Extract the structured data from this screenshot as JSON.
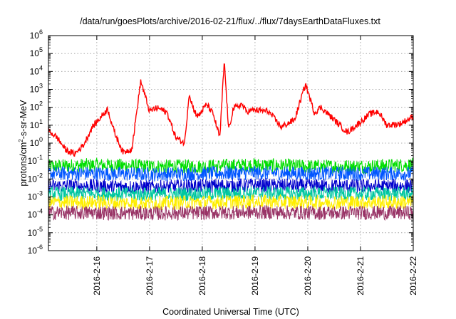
{
  "chart_data": {
    "type": "line",
    "title": "/data/run/goesPlots/archive/2016-02-21/flux/../flux/7daysEarthDataFluxes.txt",
    "xlabel": "Coordinated Universal Time (UTC)",
    "ylabel_parts": {
      "base": "protons/cm",
      "sup": "2",
      "rest": "-s-sr-MeV"
    },
    "ylabel": "protons/cm2-s-sr-MeV",
    "y_scale": "log",
    "ylim": [
      1e-06,
      1000000.0
    ],
    "xlim": [
      "2016-02-15 02:00",
      "2016-02-22 00:00"
    ],
    "grid": true,
    "legend": "none",
    "x_ticks": [
      "2016-2-16",
      "2016-2-17",
      "2016-2-18",
      "2016-2-19",
      "2016-2-20",
      "2016-2-21",
      "2016-2-22"
    ],
    "x_tick_dates": [
      "2016-02-16",
      "2016-02-17",
      "2016-02-18",
      "2016-02-19",
      "2016-02-20",
      "2016-02-21",
      "2016-02-22"
    ],
    "y_ticks": [
      {
        "base": "10",
        "exp": "-6",
        "value": 1e-06
      },
      {
        "base": "10",
        "exp": "-5",
        "value": 1e-05
      },
      {
        "base": "10",
        "exp": "-4",
        "value": 0.0001
      },
      {
        "base": "10",
        "exp": "-3",
        "value": 0.001
      },
      {
        "base": "10",
        "exp": "-2",
        "value": 0.01
      },
      {
        "base": "10",
        "exp": "-1",
        "value": 0.1
      },
      {
        "base": "10",
        "exp": "0",
        "value": 1
      },
      {
        "base": "10",
        "exp": "1",
        "value": 10
      },
      {
        "base": "10",
        "exp": "2",
        "value": 100
      },
      {
        "base": "10",
        "exp": "3",
        "value": 1000
      },
      {
        "base": "10",
        "exp": "4",
        "value": 10000
      },
      {
        "base": "10",
        "exp": "5",
        "value": 100000
      },
      {
        "base": "10",
        "exp": "6",
        "value": 1000000
      }
    ],
    "series": [
      {
        "color": "#ff0000",
        "x": [
          "2016-02-15 02:00",
          "2016-02-15 06:00",
          "2016-02-15 10:00",
          "2016-02-15 14:00",
          "2016-02-15 18:00",
          "2016-02-15 22:00",
          "2016-02-16 00:00",
          "2016-02-16 02:00",
          "2016-02-16 05:00",
          "2016-02-16 08:00",
          "2016-02-16 12:00",
          "2016-02-16 16:00",
          "2016-02-16 20:00",
          "2016-02-17 00:00",
          "2016-02-17 02:00",
          "2016-02-17 04:00",
          "2016-02-17 08:00",
          "2016-02-17 12:00",
          "2016-02-17 16:00",
          "2016-02-17 18:00",
          "2016-02-17 20:00",
          "2016-02-17 22:00",
          "2016-02-18 02:00",
          "2016-02-18 05:00",
          "2016-02-18 08:00",
          "2016-02-18 10:00",
          "2016-02-18 12:00",
          "2016-02-18 14:00",
          "2016-02-18 18:00",
          "2016-02-18 20:00",
          "2016-02-19 00:00",
          "2016-02-19 06:00",
          "2016-02-19 12:00",
          "2016-02-19 18:00",
          "2016-02-19 23:00",
          "2016-02-20 03:00",
          "2016-02-20 06:00",
          "2016-02-20 12:00",
          "2016-02-20 18:00",
          "2016-02-21 00:00",
          "2016-02-21 04:00",
          "2016-02-21 08:00",
          "2016-02-21 12:00",
          "2016-02-21 18:00",
          "2016-02-22 00:00"
        ],
        "values": [
          5,
          2,
          0.4,
          0.25,
          0.8,
          8,
          15,
          30,
          80,
          4,
          0.3,
          0.5,
          3000,
          60,
          80,
          90,
          50,
          2,
          1,
          600,
          80,
          30,
          150,
          40,
          2,
          40000,
          5,
          80,
          150,
          60,
          70,
          60,
          8,
          20,
          2000,
          50,
          100,
          20,
          4,
          15,
          40,
          60,
          10,
          12,
          30
        ]
      },
      {
        "color": "#00dd00",
        "x": [
          "2016-02-15 02:00",
          "2016-02-16 00:00",
          "2016-02-17 00:00",
          "2016-02-18 00:00",
          "2016-02-19 00:00",
          "2016-02-20 00:00",
          "2016-02-21 00:00",
          "2016-02-22 00:00"
        ],
        "values": [
          0.05,
          0.06,
          0.05,
          0.05,
          0.06,
          0.05,
          0.05,
          0.06
        ]
      },
      {
        "color": "#0055ff",
        "x": [
          "2016-02-15 02:00",
          "2016-02-16 00:00",
          "2016-02-17 00:00",
          "2016-02-18 00:00",
          "2016-02-19 00:00",
          "2016-02-20 00:00",
          "2016-02-21 00:00",
          "2016-02-22 00:00"
        ],
        "values": [
          0.02,
          0.02,
          0.018,
          0.02,
          0.022,
          0.02,
          0.02,
          0.02
        ]
      },
      {
        "color": "#0000cc",
        "x": [
          "2016-02-15 02:00",
          "2016-02-16 00:00",
          "2016-02-17 00:00",
          "2016-02-18 00:00",
          "2016-02-19 00:00",
          "2016-02-20 00:00",
          "2016-02-21 00:00",
          "2016-02-22 00:00"
        ],
        "values": [
          0.004,
          0.004,
          0.0035,
          0.004,
          0.0045,
          0.004,
          0.004,
          0.004
        ]
      },
      {
        "color": "#00c8a0",
        "x": [
          "2016-02-15 02:00",
          "2016-02-16 00:00",
          "2016-02-17 00:00",
          "2016-02-18 00:00",
          "2016-02-19 00:00",
          "2016-02-20 00:00",
          "2016-02-21 00:00",
          "2016-02-22 00:00"
        ],
        "values": [
          0.0015,
          0.0015,
          0.0014,
          0.0015,
          0.0016,
          0.0015,
          0.0015,
          0.0015
        ]
      },
      {
        "color": "#ffee00",
        "x": [
          "2016-02-15 02:00",
          "2016-02-16 00:00",
          "2016-02-17 00:00",
          "2016-02-18 00:00",
          "2016-02-19 00:00",
          "2016-02-20 00:00",
          "2016-02-21 00:00",
          "2016-02-22 00:00"
        ],
        "values": [
          0.0005,
          0.0005,
          0.00045,
          0.0005,
          0.00055,
          0.0005,
          0.0005,
          0.0005
        ]
      },
      {
        "color": "#993366",
        "x": [
          "2016-02-15 02:00",
          "2016-02-16 00:00",
          "2016-02-17 00:00",
          "2016-02-18 00:00",
          "2016-02-19 00:00",
          "2016-02-20 00:00",
          "2016-02-21 00:00",
          "2016-02-22 00:00"
        ],
        "values": [
          0.00013,
          0.00013,
          0.00012,
          0.00013,
          0.00014,
          0.00013,
          0.00013,
          0.00013
        ]
      }
    ]
  }
}
